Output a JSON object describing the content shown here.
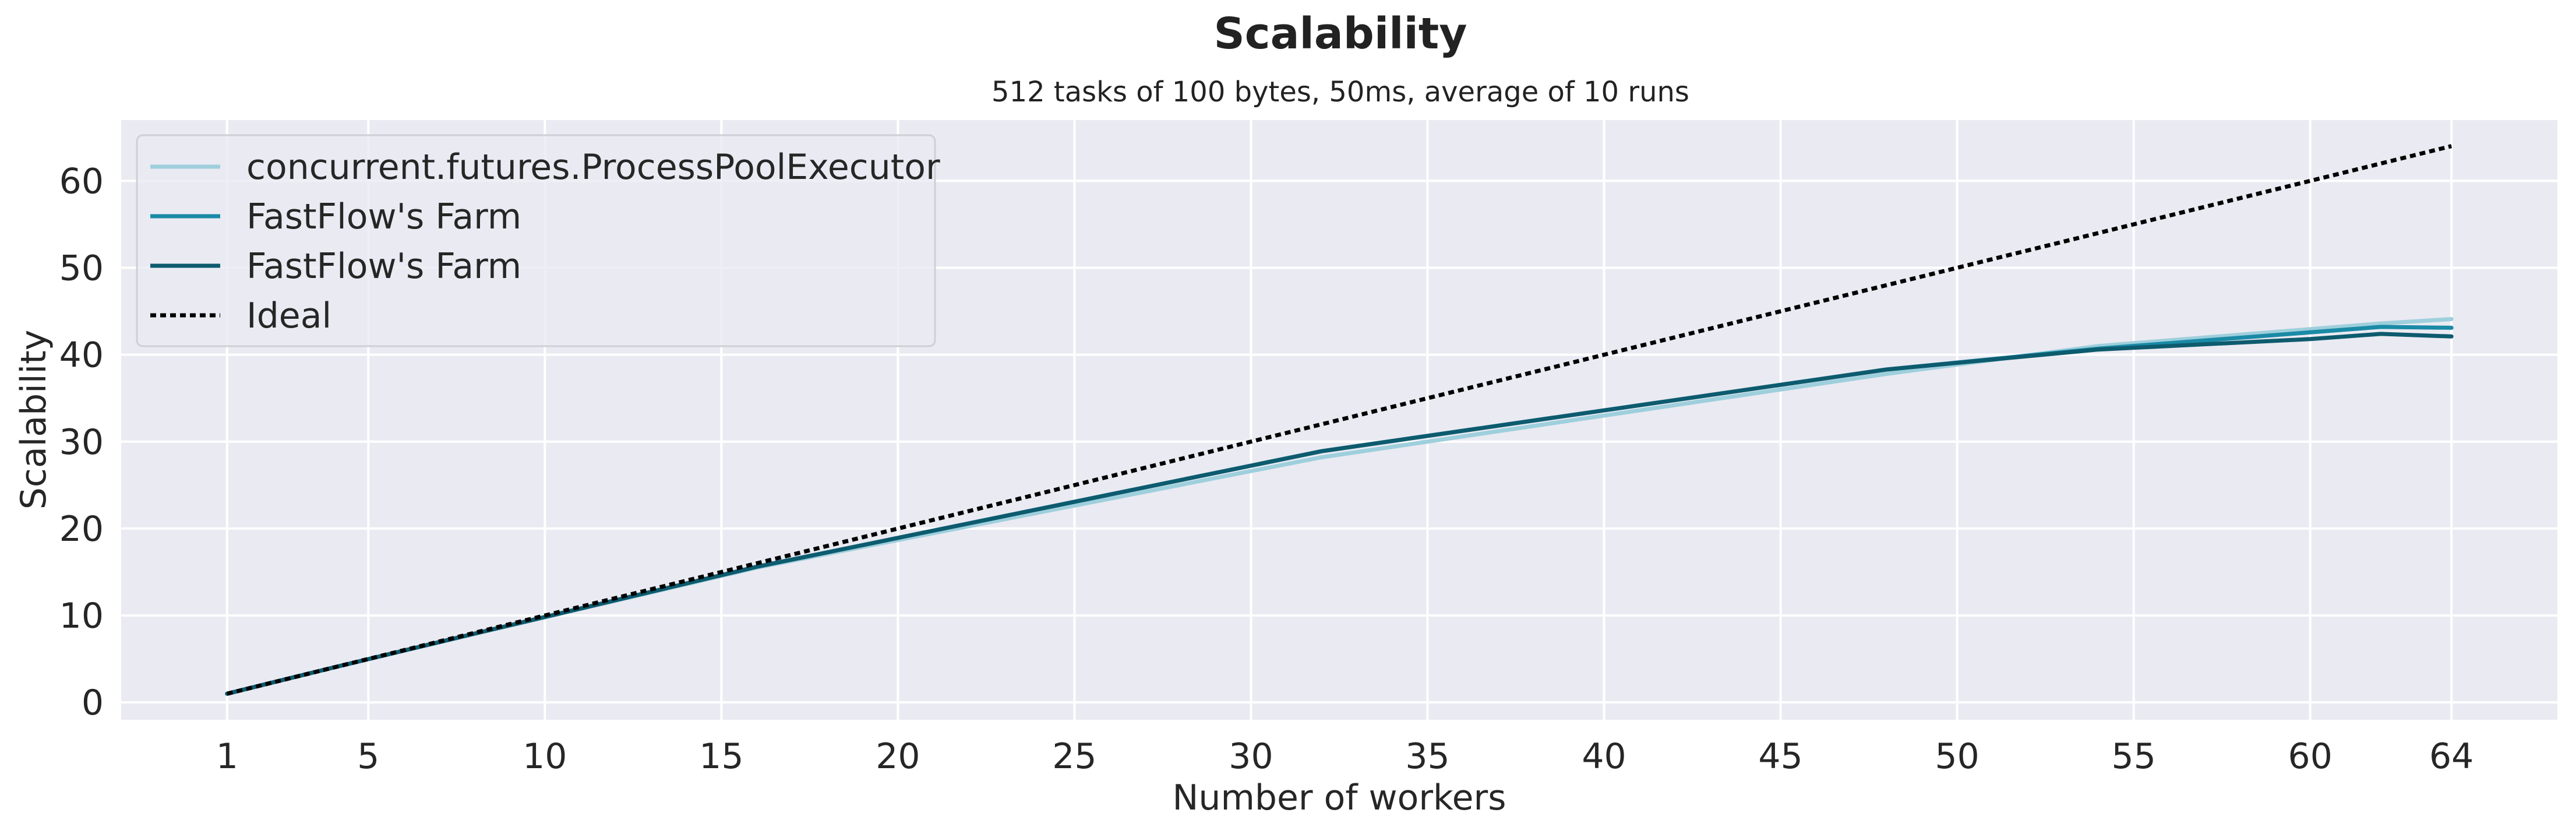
{
  "chart_data": {
    "type": "line",
    "title": "Scalability",
    "subtitle": "512 tasks of 100 bytes, 50ms, average of 10 runs",
    "xlabel": "Number of workers",
    "ylabel": "Scalability",
    "xlim": [
      -2,
      67
    ],
    "ylim": [
      -2,
      67
    ],
    "xticks": [
      1,
      5,
      10,
      15,
      20,
      25,
      30,
      35,
      40,
      45,
      50,
      55,
      60,
      64
    ],
    "yticks": [
      0,
      10,
      20,
      30,
      40,
      50,
      60
    ],
    "grid": true,
    "legend_position": "top-left",
    "background": "#eaeaf2",
    "series": [
      {
        "name": "concurrent.futures.ProcessPoolExecutor",
        "color": "#9ecfdc",
        "style": "solid",
        "x": [
          1,
          2,
          4,
          8,
          16,
          32,
          48,
          54,
          62,
          64
        ],
        "y": [
          1,
          2,
          4,
          7.9,
          15.5,
          28.2,
          37.8,
          41,
          43.6,
          44.1
        ]
      },
      {
        "name": "FastFlow's Farm",
        "color": "#1a8aa6",
        "style": "solid",
        "x": [
          1,
          2,
          4,
          8,
          16,
          32,
          48,
          54,
          62,
          64
        ],
        "y": [
          1,
          2,
          4,
          7.9,
          15.6,
          28.9,
          38.3,
          40.7,
          43.2,
          43.1
        ]
      },
      {
        "name": "FastFlow's Farm",
        "color": "#0d5b6e",
        "style": "solid",
        "x": [
          1,
          2,
          4,
          8,
          16,
          32,
          48,
          54,
          60,
          62,
          64
        ],
        "y": [
          1,
          2,
          4,
          7.9,
          15.6,
          28.9,
          38.3,
          40.6,
          41.8,
          42.4,
          42.1
        ]
      },
      {
        "name": "Ideal",
        "color": "#000000",
        "style": "dotted",
        "x": [
          1,
          64
        ],
        "y": [
          1,
          64
        ]
      }
    ]
  }
}
